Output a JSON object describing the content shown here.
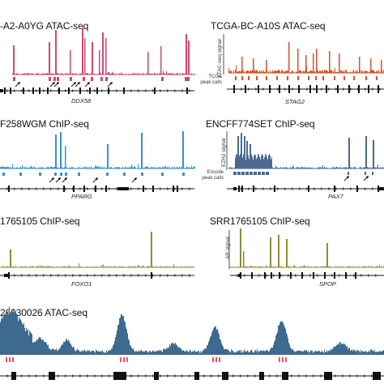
{
  "figure": {
    "panels": [
      {
        "id": "p1",
        "title": "-A2-A0YG ATAC-seq",
        "gene": "DDX58",
        "color": "#cc4a72",
        "peak_label": "",
        "ylabel": ""
      },
      {
        "id": "p2",
        "title": "TCGA-BC-A10S ATAC-seq",
        "gene": "STAG2",
        "color": "#d1542d",
        "peak_label": "TCGA peak calls",
        "ylabel": "ATAC-seq signal"
      },
      {
        "id": "p3",
        "title": "F258WGM ChIP-seq",
        "gene": "PPARG",
        "color": "#3a8fcf",
        "peak_label": "",
        "ylabel": ""
      },
      {
        "id": "p4",
        "title": "ENCFF774SET ChIP-seq",
        "gene": "PAX7",
        "color": "#4a6a90",
        "peak_label": "Encode peak calls",
        "ylabel": "EZH2 signal"
      },
      {
        "id": "p5",
        "title": "1765105 ChIP-seq",
        "gene": "FOXO1",
        "color": "#8e8c3a",
        "peak_label": "",
        "ylabel": ""
      },
      {
        "id": "p6",
        "title": "SRR1765105 ChIP-seq",
        "gene": "SPOP",
        "color": "#8e8c3a",
        "peak_label": "",
        "ylabel": "AR signal"
      },
      {
        "id": "p7",
        "title": "26930026 ATAC-seq",
        "gene": "",
        "color": "#3f6a8f",
        "peak_label": "",
        "ylabel": ""
      }
    ]
  }
}
